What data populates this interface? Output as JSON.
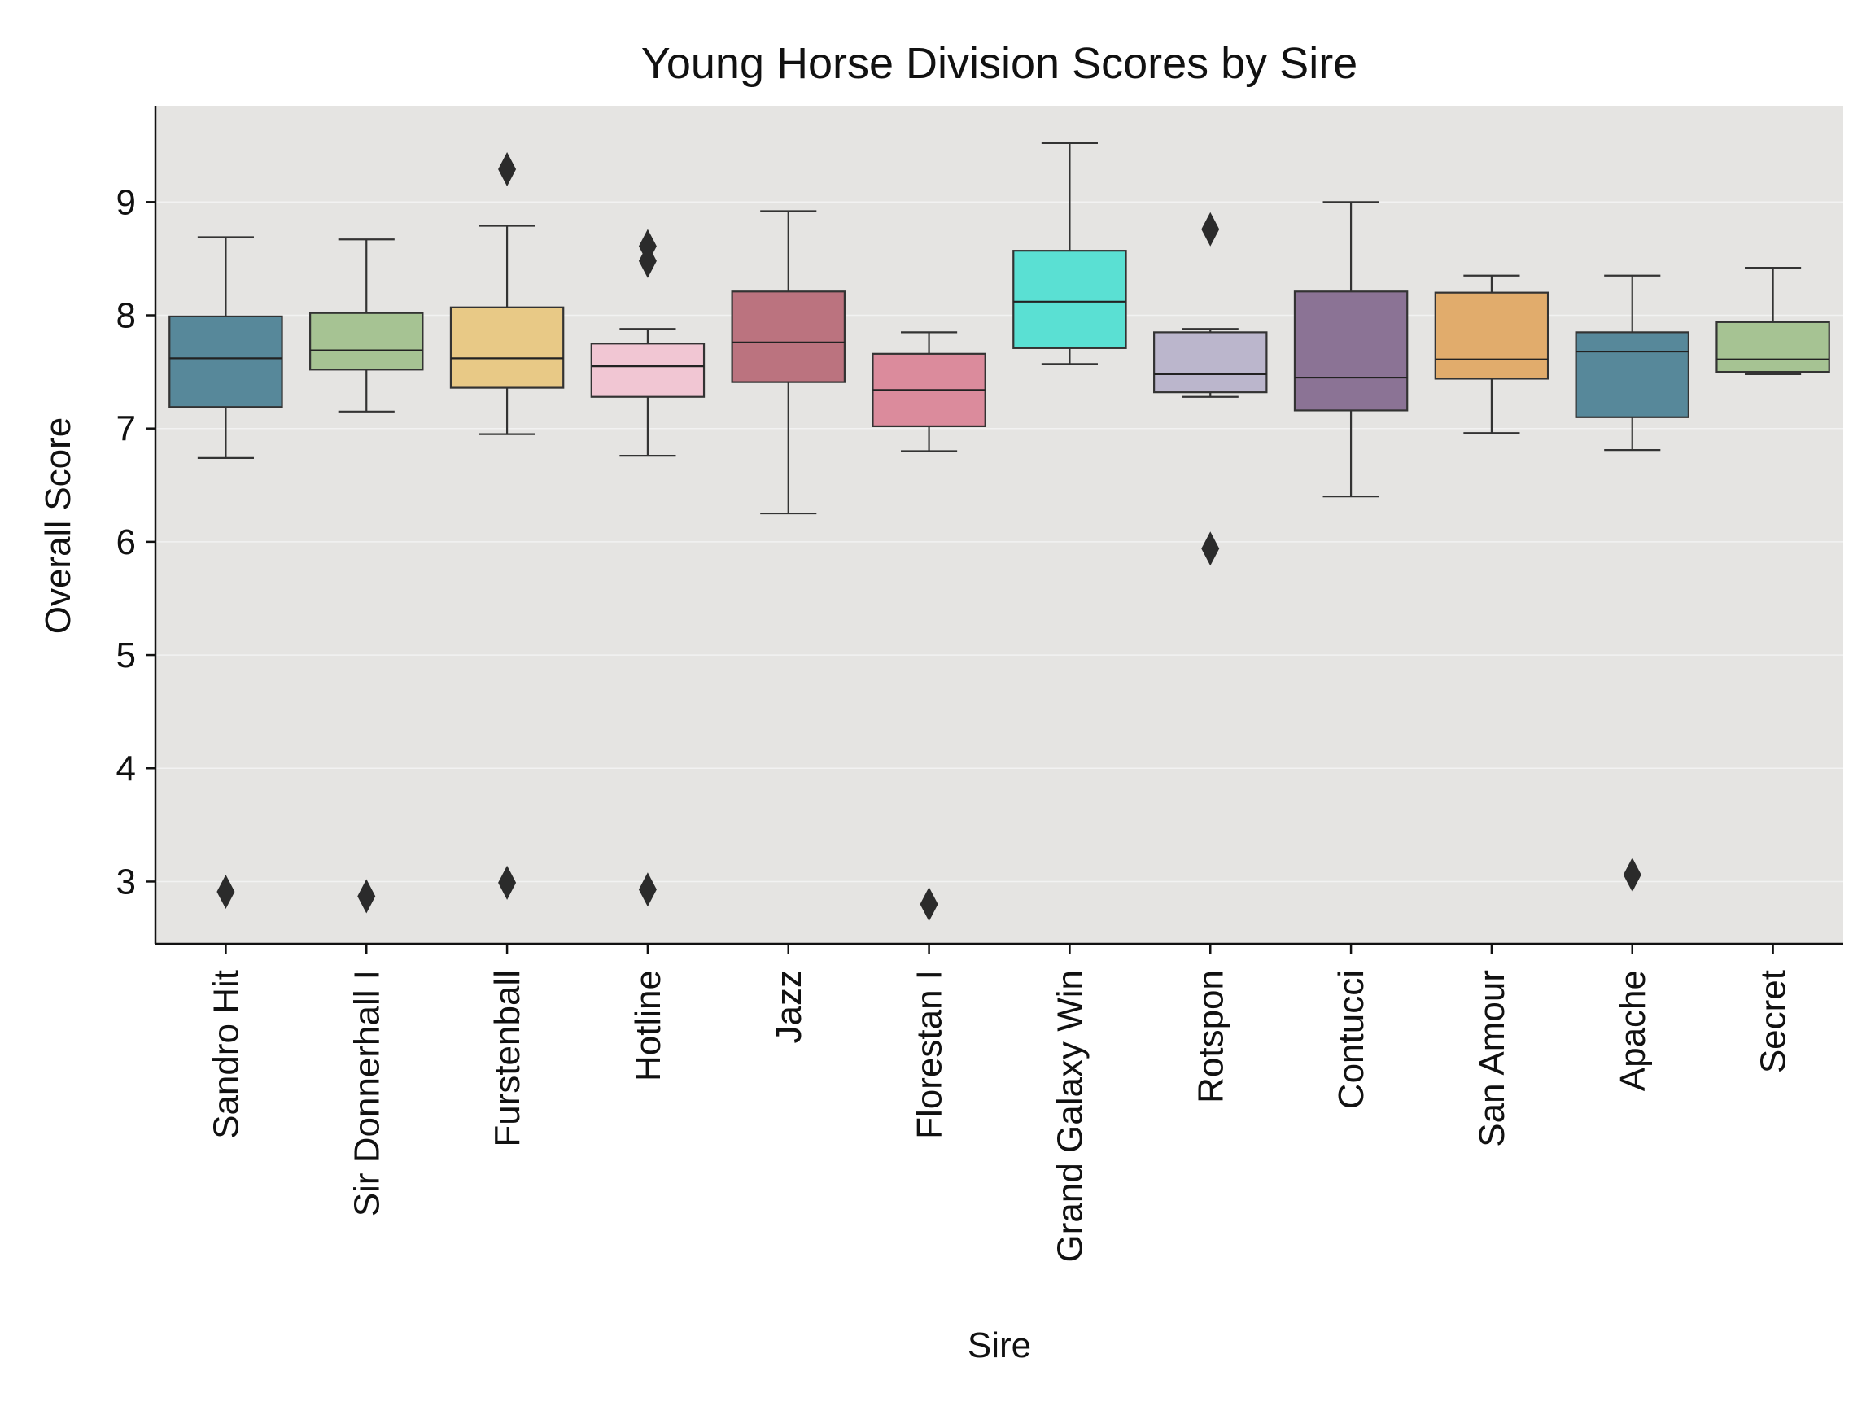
{
  "chart_data": {
    "type": "box",
    "title": "Young Horse Division Scores by Sire",
    "xlabel": "Sire",
    "ylabel": "Overall Score",
    "ylim": [
      2.45,
      9.85
    ],
    "yticks": [
      3,
      4,
      5,
      6,
      7,
      8,
      9
    ],
    "ytick_labels": [
      "3",
      "4",
      "5",
      "6",
      "7",
      "8",
      "9"
    ],
    "grid": true,
    "background": "#e5e4e2",
    "categories": [
      "Sandro Hit",
      "Sir Donnerhall I",
      "Furstenball",
      "Hotline",
      "Jazz",
      "Florestan I",
      "Grand Galaxy Win",
      "Rotspon",
      "Contucci",
      "San Amour",
      "Apache",
      "Secret"
    ],
    "boxes": [
      {
        "name": "Sandro Hit",
        "color": "#57889a",
        "whislo": 6.74,
        "q1": 7.19,
        "med": 7.62,
        "q3": 7.99,
        "whishi": 8.69,
        "fliers": [
          2.91
        ]
      },
      {
        "name": "Sir Donnerhall I",
        "color": "#a6c393",
        "whislo": 7.15,
        "q1": 7.52,
        "med": 7.69,
        "q3": 8.02,
        "whishi": 8.67,
        "fliers": [
          2.87
        ]
      },
      {
        "name": "Furstenball",
        "color": "#e8c986",
        "whislo": 6.95,
        "q1": 7.36,
        "med": 7.62,
        "q3": 8.07,
        "whishi": 8.79,
        "fliers": [
          9.29,
          2.99
        ]
      },
      {
        "name": "Hotline",
        "color": "#f1c6d3",
        "whislo": 6.76,
        "q1": 7.28,
        "med": 7.55,
        "q3": 7.75,
        "whishi": 7.88,
        "fliers": [
          8.61,
          8.48,
          2.93
        ]
      },
      {
        "name": "Jazz",
        "color": "#bb737f",
        "whislo": 6.25,
        "q1": 7.41,
        "med": 7.76,
        "q3": 8.21,
        "whishi": 8.92,
        "fliers": []
      },
      {
        "name": "Florestan I",
        "color": "#db8b9c",
        "whislo": 6.8,
        "q1": 7.02,
        "med": 7.34,
        "q3": 7.66,
        "whishi": 7.85,
        "fliers": [
          2.8
        ]
      },
      {
        "name": "Grand Galaxy Win",
        "color": "#5ae0d3",
        "whislo": 7.57,
        "q1": 7.71,
        "med": 8.12,
        "q3": 8.57,
        "whishi": 9.52,
        "fliers": []
      },
      {
        "name": "Rotspon",
        "color": "#bbb6cc",
        "whislo": 7.28,
        "q1": 7.32,
        "med": 7.48,
        "q3": 7.85,
        "whishi": 7.88,
        "fliers": [
          8.76,
          5.94
        ]
      },
      {
        "name": "Contucci",
        "color": "#8b7395",
        "whislo": 6.4,
        "q1": 7.16,
        "med": 7.45,
        "q3": 8.21,
        "whishi": 9.0,
        "fliers": []
      },
      {
        "name": "San Amour",
        "color": "#e1ac6c",
        "whislo": 6.96,
        "q1": 7.44,
        "med": 7.61,
        "q3": 8.2,
        "whishi": 8.35,
        "fliers": []
      },
      {
        "name": "Apache",
        "color": "#57889a",
        "whislo": 6.81,
        "q1": 7.1,
        "med": 7.68,
        "q3": 7.85,
        "whishi": 8.35,
        "fliers": [
          3.06
        ]
      },
      {
        "name": "Secret",
        "color": "#a6c393",
        "whislo": 7.48,
        "q1": 7.5,
        "med": 7.61,
        "q3": 7.94,
        "whishi": 8.42,
        "fliers": []
      }
    ]
  }
}
